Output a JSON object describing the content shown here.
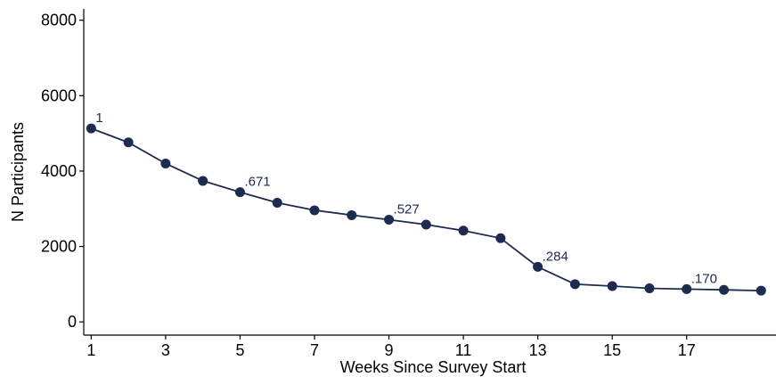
{
  "chart_data": {
    "type": "line",
    "title": "",
    "xlabel": "Weeks Since Survey Start",
    "ylabel": "N Participants",
    "xlim": [
      0.8,
      19.4
    ],
    "ylim": [
      -350,
      8300
    ],
    "xticks": [
      1,
      3,
      5,
      7,
      9,
      11,
      13,
      15,
      17
    ],
    "yticks": [
      0,
      2000,
      4000,
      6000,
      8000
    ],
    "grid": false,
    "legend": "none",
    "colors": {
      "series": "#1c2b4f",
      "labels": "#1c2b4f",
      "axis": "#000000"
    },
    "series": [
      {
        "x": [
          1,
          2,
          3,
          4,
          5,
          6,
          7,
          8,
          9,
          10,
          11,
          12,
          13,
          14,
          15,
          16,
          17,
          18,
          19
        ],
        "y": [
          5130,
          4760,
          4200,
          3740,
          3440,
          3160,
          2960,
          2830,
          2710,
          2580,
          2420,
          2220,
          1460,
          1000,
          950,
          890,
          870,
          850,
          830
        ]
      }
    ],
    "annotations": [
      {
        "x": 1,
        "y": 5130,
        "text": "1"
      },
      {
        "x": 5,
        "y": 3440,
        "text": ".671"
      },
      {
        "x": 9,
        "y": 2710,
        "text": ".527"
      },
      {
        "x": 13,
        "y": 1460,
        "text": ".284"
      },
      {
        "x": 17,
        "y": 870,
        "text": ".170"
      }
    ]
  }
}
